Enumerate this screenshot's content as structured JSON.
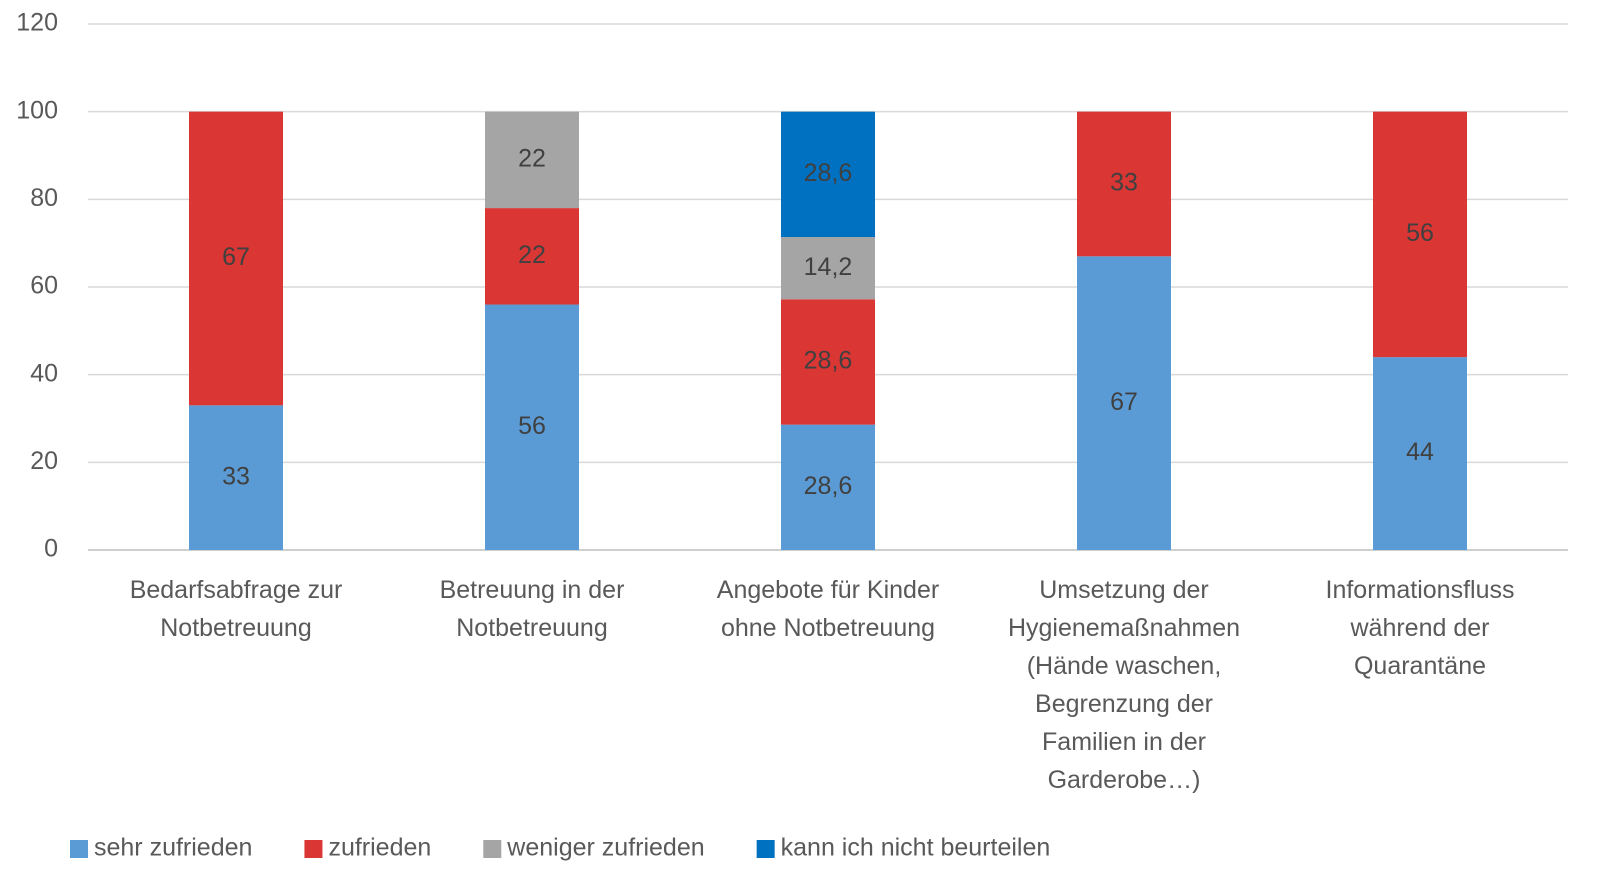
{
  "chart_data": {
    "type": "stacked_bar",
    "categories": [
      "Bedarfsabfrage zur Notbetreuung",
      "Betreuung in der Notbetreuung",
      "Angebote für Kinder ohne Notbetreuung",
      "Umsetzung der Hygienemaßnahmen (Hände waschen, Begrenzung der Familien in der Garderobe…)",
      "Informationsfluss während der Quarantäne"
    ],
    "series": [
      {
        "name": "sehr zufrieden",
        "color": "#5b9bd5",
        "values": [
          33,
          56,
          28.6,
          67,
          44
        ],
        "value_labels": [
          "33",
          "56",
          "28,6",
          "67",
          "44"
        ]
      },
      {
        "name": "zufrieden",
        "color": "#d93634",
        "values": [
          67,
          22,
          28.6,
          33,
          56
        ],
        "value_labels": [
          "67",
          "22",
          "28,6",
          "33",
          "56"
        ]
      },
      {
        "name": "weniger zufrieden",
        "color": "#a5a5a5",
        "values": [
          null,
          22,
          14.2,
          null,
          null
        ],
        "value_labels": [
          null,
          "22",
          "14,2",
          null,
          null
        ]
      },
      {
        "name": "kann ich nicht beurteilen",
        "color": "#0070c0",
        "values": [
          null,
          null,
          28.6,
          null,
          null
        ],
        "value_labels": [
          null,
          null,
          "28,6",
          null,
          null
        ]
      }
    ],
    "ylim": [
      0,
      120
    ],
    "yticks": [
      0,
      20,
      40,
      60,
      80,
      100,
      120
    ],
    "grid": true,
    "legend": "bottom"
  }
}
